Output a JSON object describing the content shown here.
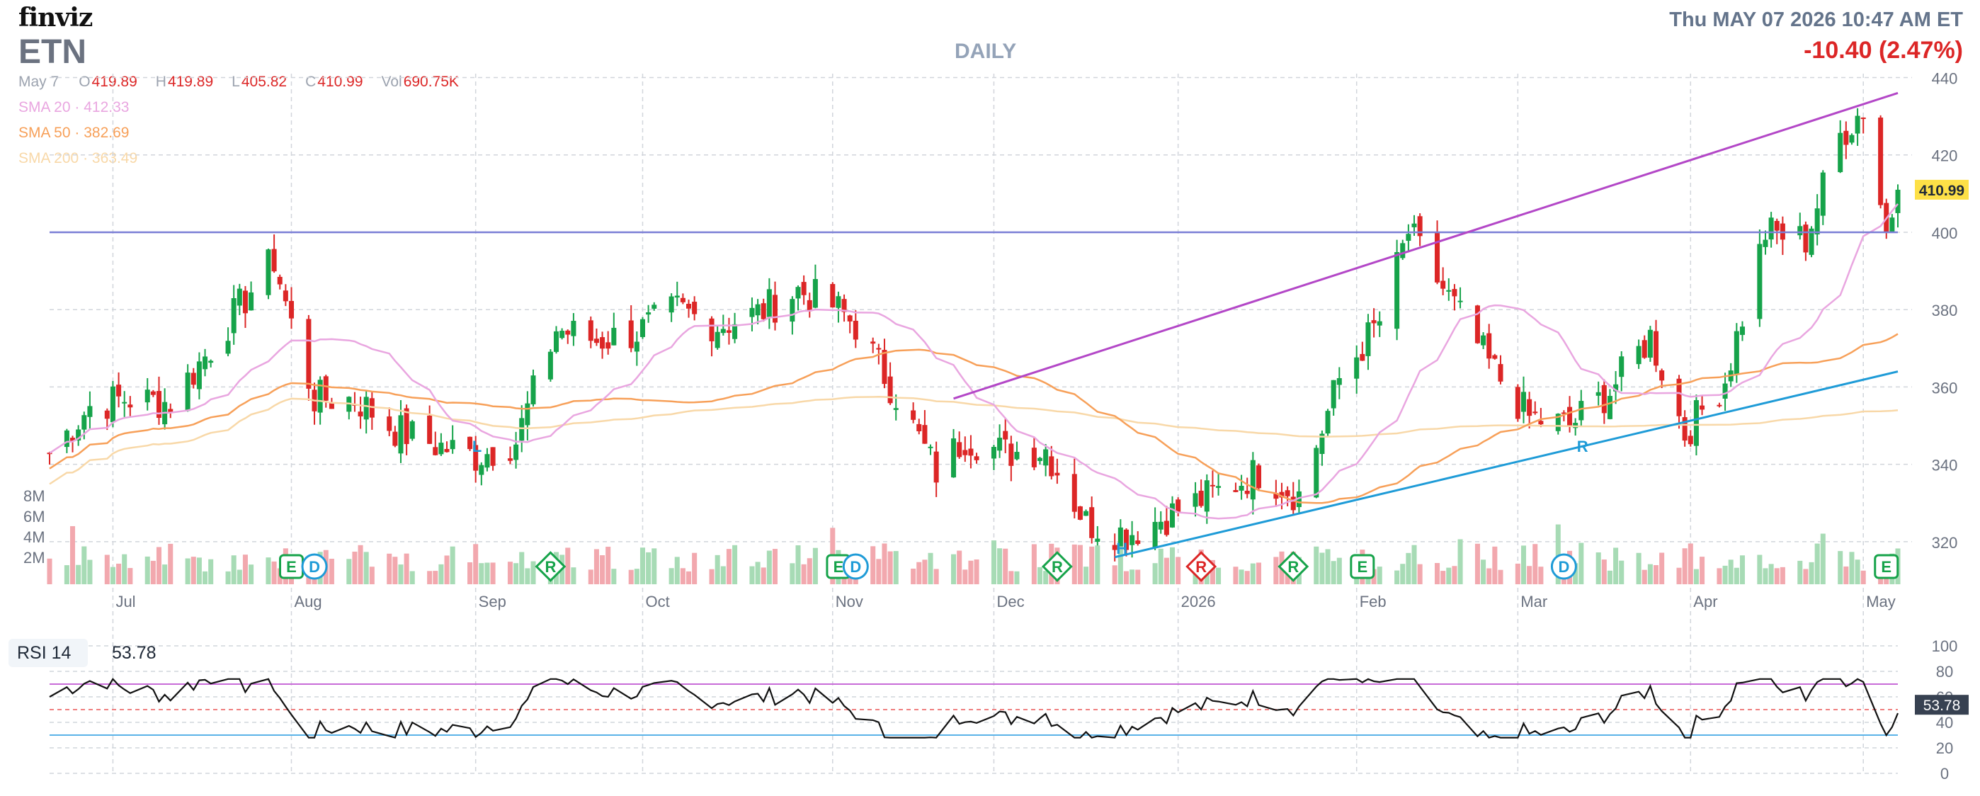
{
  "header": {
    "logo": "finviz",
    "ticker": "ETN",
    "interval": "DAILY",
    "datetime": "Thu MAY 07 2026 10:47 AM ET",
    "change": "-10.40 (2.47%)"
  },
  "ohlc": {
    "date": "May 7",
    "open_label": "O",
    "open": "419.89",
    "high_label": "H",
    "high": "419.89",
    "low_label": "L",
    "low": "405.82",
    "close_label": "C",
    "close": "410.99",
    "vol_label": "Vol",
    "vol": "690.75K"
  },
  "indicators": {
    "sma20": {
      "label": "SMA 20",
      "value": "412.33",
      "color": "#e9a6e0"
    },
    "sma50": {
      "label": "SMA 50",
      "value": "382.69",
      "color": "#f7a059"
    },
    "sma200": {
      "label": "SMA 200",
      "value": "363.49",
      "color": "#f8d8a8"
    }
  },
  "colors": {
    "up": "#16a34a",
    "down": "#dc2626",
    "up_vol": "#a7dbb5",
    "down_vol": "#f2a8ae",
    "trend_upper": "#b347c7",
    "trend_lower": "#1e9bd7",
    "horizontal": "#7b7fd6",
    "grid": "#d1d5db"
  },
  "chart_data": {
    "type": "candlestick",
    "title": "",
    "price_axis": {
      "ticks": [
        320,
        340,
        360,
        380,
        400,
        420,
        440
      ],
      "ylim": [
        309,
        441
      ],
      "last_price": "410.99"
    },
    "volume_axis": {
      "ticks": [
        "2M",
        "4M",
        "6M",
        "8M"
      ],
      "ylim": [
        0,
        9000000
      ]
    },
    "months": [
      {
        "label": "Jul",
        "date": "2025-07-01"
      },
      {
        "label": "Aug",
        "date": "2025-08-01"
      },
      {
        "label": "Sep",
        "date": "2025-09-02"
      },
      {
        "label": "Oct",
        "date": "2025-10-01"
      },
      {
        "label": "Nov",
        "date": "2025-11-03"
      },
      {
        "label": "Dec",
        "date": "2025-12-01"
      },
      {
        "label": "2026",
        "date": "2026-01-02"
      },
      {
        "label": "Feb",
        "date": "2026-02-02"
      },
      {
        "label": "Mar",
        "date": "2026-03-02"
      },
      {
        "label": "Apr",
        "date": "2026-04-01"
      },
      {
        "label": "May",
        "date": "2026-05-01"
      }
    ],
    "start_date": "2025-06-20",
    "end_date": "2026-05-07",
    "close_series": [
      {
        "date": "2025-06-20",
        "close": 343
      },
      {
        "date": "2025-06-27",
        "close": 355
      },
      {
        "date": "2025-07-03",
        "close": 357
      },
      {
        "date": "2025-07-11",
        "close": 356
      },
      {
        "date": "2025-07-18",
        "close": 370
      },
      {
        "date": "2025-07-25",
        "close": 385
      },
      {
        "date": "2025-07-29",
        "close": 393
      },
      {
        "date": "2025-08-01",
        "close": 376
      },
      {
        "date": "2025-08-05",
        "close": 357
      },
      {
        "date": "2025-08-12",
        "close": 357
      },
      {
        "date": "2025-08-19",
        "close": 349
      },
      {
        "date": "2025-08-26",
        "close": 345
      },
      {
        "date": "2025-09-02",
        "close": 342
      },
      {
        "date": "2025-09-09",
        "close": 346
      },
      {
        "date": "2025-09-16",
        "close": 375
      },
      {
        "date": "2025-09-23",
        "close": 372
      },
      {
        "date": "2025-09-30",
        "close": 374
      },
      {
        "date": "2025-10-07",
        "close": 380
      },
      {
        "date": "2025-10-14",
        "close": 376
      },
      {
        "date": "2025-10-21",
        "close": 379
      },
      {
        "date": "2025-10-28",
        "close": 385
      },
      {
        "date": "2025-11-03",
        "close": 381
      },
      {
        "date": "2025-11-07",
        "close": 376
      },
      {
        "date": "2025-11-14",
        "close": 358
      },
      {
        "date": "2025-11-21",
        "close": 338
      },
      {
        "date": "2025-11-26",
        "close": 347
      },
      {
        "date": "2025-12-03",
        "close": 343
      },
      {
        "date": "2025-12-10",
        "close": 344
      },
      {
        "date": "2025-12-17",
        "close": 325
      },
      {
        "date": "2025-12-24",
        "close": 322
      },
      {
        "date": "2026-01-02",
        "close": 328
      },
      {
        "date": "2026-01-09",
        "close": 333
      },
      {
        "date": "2026-01-16",
        "close": 338
      },
      {
        "date": "2026-01-23",
        "close": 332
      },
      {
        "date": "2026-01-30",
        "close": 362
      },
      {
        "date": "2026-02-06",
        "close": 377
      },
      {
        "date": "2026-02-11",
        "close": 400
      },
      {
        "date": "2026-02-18",
        "close": 383
      },
      {
        "date": "2026-02-25",
        "close": 366
      },
      {
        "date": "2026-03-04",
        "close": 352
      },
      {
        "date": "2026-03-11",
        "close": 350
      },
      {
        "date": "2026-03-18",
        "close": 359
      },
      {
        "date": "2026-03-25",
        "close": 373
      },
      {
        "date": "2026-03-31",
        "close": 348
      },
      {
        "date": "2026-04-07",
        "close": 362
      },
      {
        "date": "2026-04-14",
        "close": 400
      },
      {
        "date": "2026-04-21",
        "close": 398
      },
      {
        "date": "2026-04-27",
        "close": 425
      },
      {
        "date": "2026-05-01",
        "close": 432
      },
      {
        "date": "2026-05-05",
        "close": 400
      },
      {
        "date": "2026-05-07",
        "close": 410.99
      }
    ],
    "horizontal_line": 400,
    "trendlines": [
      {
        "from": {
          "date": "2025-11-24",
          "price": 357
        },
        "to": {
          "date": "2026-05-07",
          "price": 436
        }
      },
      {
        "from": {
          "date": "2025-12-22",
          "price": 316
        },
        "to": {
          "date": "2026-05-07",
          "price": 364
        }
      }
    ],
    "events": [
      {
        "date": "2025-08-01",
        "label": "E"
      },
      {
        "date": "2025-08-05",
        "label": "D"
      },
      {
        "date": "2025-09-15",
        "label": "R"
      },
      {
        "date": "2025-11-04",
        "label": "E"
      },
      {
        "date": "2025-11-07",
        "label": "D"
      },
      {
        "date": "2025-12-12",
        "label": "R"
      },
      {
        "date": "2026-01-06",
        "label": "R"
      },
      {
        "date": "2026-01-22",
        "label": "R"
      },
      {
        "date": "2026-02-03",
        "label": "E"
      },
      {
        "date": "2026-03-10",
        "label": "D"
      },
      {
        "date": "2026-05-05",
        "label": "E"
      }
    ],
    "pattern_labels": [
      {
        "date": "2025-09-01",
        "label": "L"
      },
      {
        "date": "2025-12-22",
        "label": "H"
      },
      {
        "date": "2026-03-12",
        "label": "R"
      }
    ],
    "rsi": {
      "label": "RSI 14",
      "value": "53.78",
      "ticks": [
        0,
        20,
        40,
        60,
        80,
        100
      ],
      "levels": [
        70,
        30
      ]
    }
  }
}
